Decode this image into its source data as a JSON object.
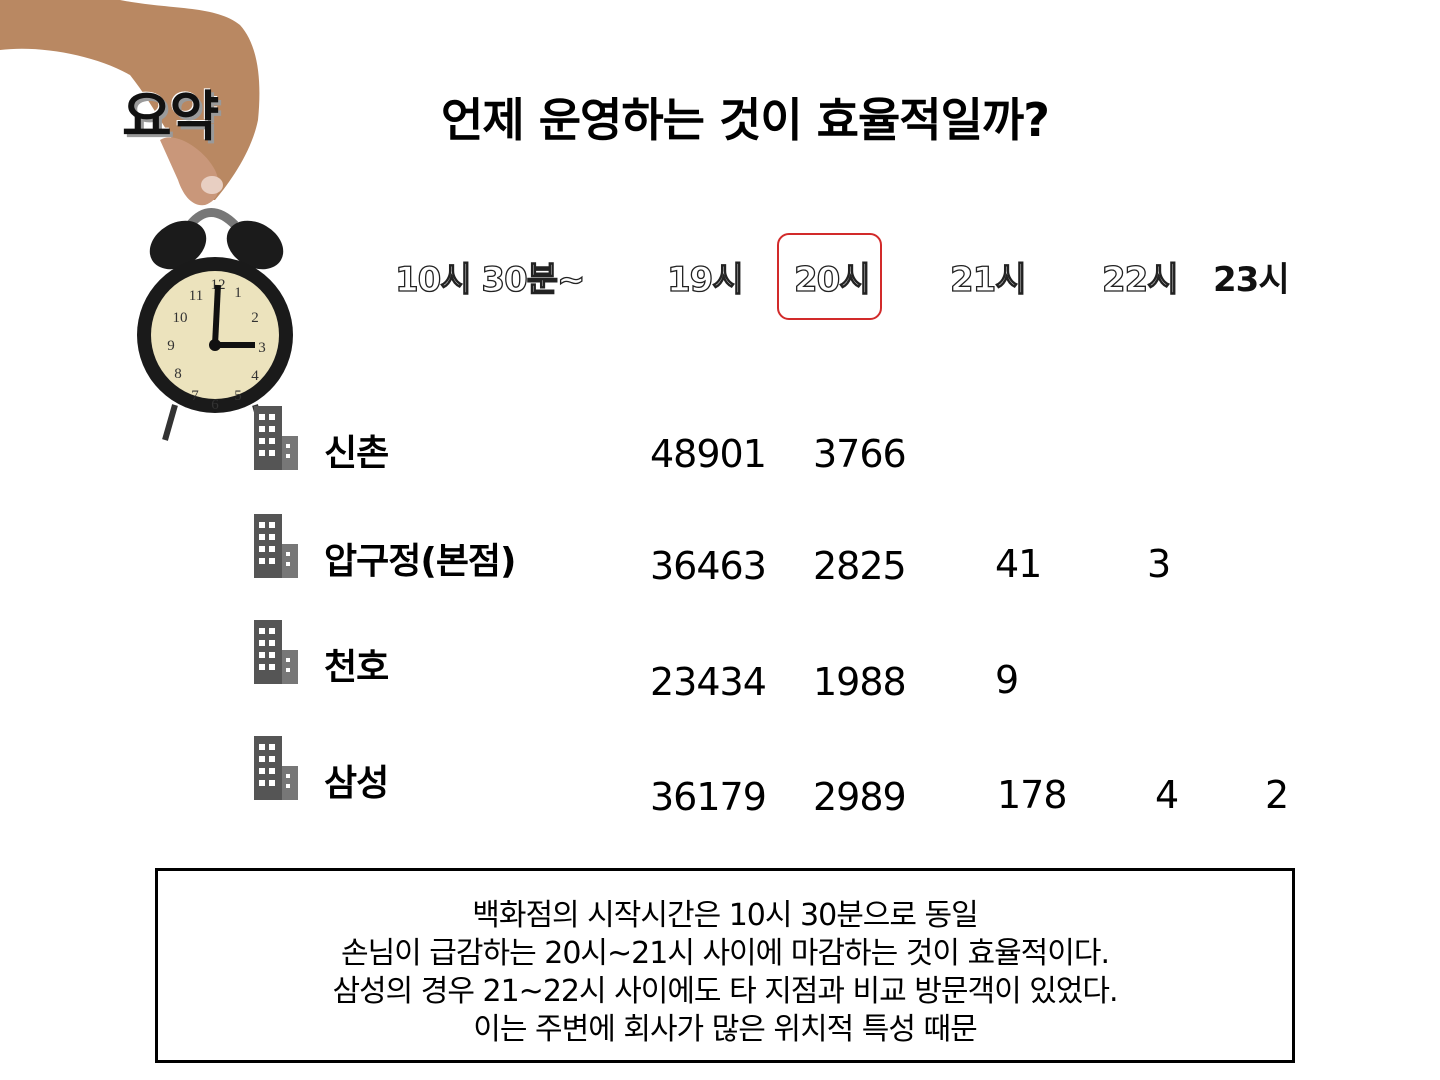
{
  "summary_title": "요약",
  "title": "언제 운영하는 것이 효율적일까?",
  "columns": {
    "start": "10시 30분~",
    "h19": "19시",
    "h20": "20시",
    "h21": "21시",
    "h22": "22시",
    "h23": "23시"
  },
  "highlight_color": "#d22a2a",
  "rows": [
    {
      "store": "신촌",
      "h19": "48901",
      "h20": "3766",
      "h21": "",
      "h22": "",
      "h23": ""
    },
    {
      "store": "압구정(본점)",
      "h19": "36463",
      "h20": "2825",
      "h21": "41",
      "h22": "3",
      "h23": ""
    },
    {
      "store": "천호",
      "h19": "23434",
      "h20": "1988",
      "h21": "9",
      "h22": "",
      "h23": ""
    },
    {
      "store": "삼성",
      "h19": "36179",
      "h20": "2989",
      "h21": "178",
      "h22": "4",
      "h23": "2"
    }
  ],
  "note": [
    "백화점의 시작시간은 10시 30분으로 동일",
    "손님이 급감하는 20시~21시 사이에 마감하는 것이 효율적이다.",
    "삼성의 경우 21~22시 사이에도 타 지점과 비교 방문객이 있었다.",
    "이는 주변에 회사가 많은 위치적 특성 때문"
  ]
}
